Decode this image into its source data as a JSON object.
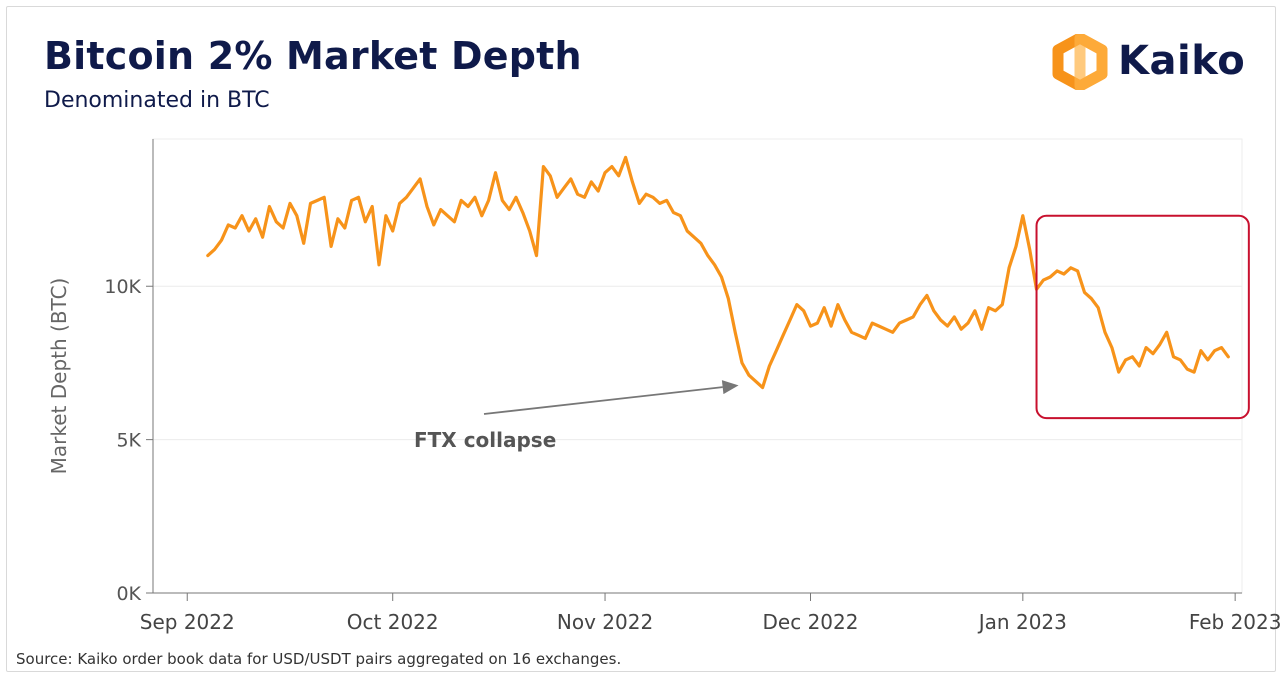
{
  "header": {
    "title": "Bitcoin 2% Market Depth",
    "subtitle": "Denominated in BTC"
  },
  "brand": {
    "name": "Kaiko",
    "logo_icon": "hexagon-logo-icon",
    "logo_color": "#f7931a",
    "text_color": "#0f1a4a"
  },
  "source": "Source: Kaiko order book data for USD/USDT pairs aggregated on 16 exchanges.",
  "chart_data": {
    "type": "line",
    "title": "Bitcoin 2% Market Depth",
    "subtitle": "Denominated in BTC",
    "xlabel": "",
    "ylabel": "Market Depth (BTC)",
    "x_range": [
      "2022-08-27",
      "2023-02-02"
    ],
    "ylim": [
      0,
      14800
    ],
    "y_ticks": [
      {
        "value": 0,
        "label": "0K"
      },
      {
        "value": 5000,
        "label": "5K"
      },
      {
        "value": 10000,
        "label": "10K"
      }
    ],
    "x_ticks": [
      {
        "date": "2022-09-01",
        "label": "Sep 2022"
      },
      {
        "date": "2022-10-01",
        "label": "Oct 2022"
      },
      {
        "date": "2022-11-01",
        "label": "Nov 2022"
      },
      {
        "date": "2022-12-01",
        "label": "Dec 2022"
      },
      {
        "date": "2023-01-01",
        "label": "Jan 2023"
      },
      {
        "date": "2023-02-01",
        "label": "Feb 2023"
      }
    ],
    "grid": true,
    "line_color": "#f7931a",
    "series": [
      {
        "points": [
          [
            "2022-09-04",
            11000
          ],
          [
            "2022-09-05",
            11200
          ],
          [
            "2022-09-06",
            11500
          ],
          [
            "2022-09-07",
            12000
          ],
          [
            "2022-09-08",
            11900
          ],
          [
            "2022-09-09",
            12300
          ],
          [
            "2022-09-10",
            11800
          ],
          [
            "2022-09-11",
            12200
          ],
          [
            "2022-09-12",
            11600
          ],
          [
            "2022-09-13",
            12600
          ],
          [
            "2022-09-14",
            12100
          ],
          [
            "2022-09-15",
            11900
          ],
          [
            "2022-09-16",
            12700
          ],
          [
            "2022-09-17",
            12300
          ],
          [
            "2022-09-18",
            11400
          ],
          [
            "2022-09-19",
            12700
          ],
          [
            "2022-09-20",
            12800
          ],
          [
            "2022-09-21",
            12900
          ],
          [
            "2022-09-22",
            11300
          ],
          [
            "2022-09-23",
            12200
          ],
          [
            "2022-09-24",
            11900
          ],
          [
            "2022-09-25",
            12800
          ],
          [
            "2022-09-26",
            12900
          ],
          [
            "2022-09-27",
            12100
          ],
          [
            "2022-09-28",
            12600
          ],
          [
            "2022-09-29",
            10700
          ],
          [
            "2022-09-30",
            12300
          ],
          [
            "2022-10-01",
            11800
          ],
          [
            "2022-10-02",
            12700
          ],
          [
            "2022-10-03",
            12900
          ],
          [
            "2022-10-04",
            13200
          ],
          [
            "2022-10-05",
            13500
          ],
          [
            "2022-10-06",
            12600
          ],
          [
            "2022-10-07",
            12000
          ],
          [
            "2022-10-08",
            12500
          ],
          [
            "2022-10-09",
            12300
          ],
          [
            "2022-10-10",
            12100
          ],
          [
            "2022-10-11",
            12800
          ],
          [
            "2022-10-12",
            12600
          ],
          [
            "2022-10-13",
            12900
          ],
          [
            "2022-10-14",
            12300
          ],
          [
            "2022-10-15",
            12800
          ],
          [
            "2022-10-16",
            13700
          ],
          [
            "2022-10-17",
            12800
          ],
          [
            "2022-10-18",
            12500
          ],
          [
            "2022-10-19",
            12900
          ],
          [
            "2022-10-20",
            12400
          ],
          [
            "2022-10-21",
            11800
          ],
          [
            "2022-10-22",
            11000
          ],
          [
            "2022-10-23",
            13900
          ],
          [
            "2022-10-24",
            13600
          ],
          [
            "2022-10-25",
            12900
          ],
          [
            "2022-10-26",
            13200
          ],
          [
            "2022-10-27",
            13500
          ],
          [
            "2022-10-28",
            13000
          ],
          [
            "2022-10-29",
            12900
          ],
          [
            "2022-10-30",
            13400
          ],
          [
            "2022-10-31",
            13100
          ],
          [
            "2022-11-01",
            13700
          ],
          [
            "2022-11-02",
            13900
          ],
          [
            "2022-11-03",
            13600
          ],
          [
            "2022-11-04",
            14200
          ],
          [
            "2022-11-05",
            13400
          ],
          [
            "2022-11-06",
            12700
          ],
          [
            "2022-11-07",
            13000
          ],
          [
            "2022-11-08",
            12900
          ],
          [
            "2022-11-09",
            12700
          ],
          [
            "2022-11-10",
            12800
          ],
          [
            "2022-11-11",
            12400
          ],
          [
            "2022-11-12",
            12300
          ],
          [
            "2022-11-13",
            11800
          ],
          [
            "2022-11-14",
            11600
          ],
          [
            "2022-11-15",
            11400
          ],
          [
            "2022-11-16",
            11000
          ],
          [
            "2022-11-17",
            10700
          ],
          [
            "2022-11-18",
            10300
          ],
          [
            "2022-11-19",
            9600
          ],
          [
            "2022-11-20",
            8500
          ],
          [
            "2022-11-21",
            7500
          ],
          [
            "2022-11-22",
            7100
          ],
          [
            "2022-11-23",
            6900
          ],
          [
            "2022-11-24",
            6700
          ],
          [
            "2022-11-25",
            7400
          ],
          [
            "2022-11-26",
            7900
          ],
          [
            "2022-11-27",
            8400
          ],
          [
            "2022-11-28",
            8900
          ],
          [
            "2022-11-29",
            9400
          ],
          [
            "2022-11-30",
            9200
          ],
          [
            "2022-12-01",
            8700
          ],
          [
            "2022-12-02",
            8800
          ],
          [
            "2022-12-03",
            9300
          ],
          [
            "2022-12-04",
            8700
          ],
          [
            "2022-12-05",
            9400
          ],
          [
            "2022-12-06",
            8900
          ],
          [
            "2022-12-07",
            8500
          ],
          [
            "2022-12-08",
            8400
          ],
          [
            "2022-12-09",
            8300
          ],
          [
            "2022-12-10",
            8800
          ],
          [
            "2022-12-11",
            8700
          ],
          [
            "2022-12-12",
            8600
          ],
          [
            "2022-12-13",
            8500
          ],
          [
            "2022-12-14",
            8800
          ],
          [
            "2022-12-15",
            8900
          ],
          [
            "2022-12-16",
            9000
          ],
          [
            "2022-12-17",
            9400
          ],
          [
            "2022-12-18",
            9700
          ],
          [
            "2022-12-19",
            9200
          ],
          [
            "2022-12-20",
            8900
          ],
          [
            "2022-12-21",
            8700
          ],
          [
            "2022-12-22",
            9000
          ],
          [
            "2022-12-23",
            8600
          ],
          [
            "2022-12-24",
            8800
          ],
          [
            "2022-12-25",
            9200
          ],
          [
            "2022-12-26",
            8600
          ],
          [
            "2022-12-27",
            9300
          ],
          [
            "2022-12-28",
            9200
          ],
          [
            "2022-12-29",
            9400
          ],
          [
            "2022-12-30",
            10600
          ],
          [
            "2022-12-31",
            11300
          ],
          [
            "2023-01-01",
            12300
          ],
          [
            "2023-01-02",
            11200
          ],
          [
            "2023-01-03",
            9900
          ],
          [
            "2023-01-04",
            10200
          ],
          [
            "2023-01-05",
            10300
          ],
          [
            "2023-01-06",
            10500
          ],
          [
            "2023-01-07",
            10400
          ],
          [
            "2023-01-08",
            10600
          ],
          [
            "2023-01-09",
            10500
          ],
          [
            "2023-01-10",
            9800
          ],
          [
            "2023-01-11",
            9600
          ],
          [
            "2023-01-12",
            9300
          ],
          [
            "2023-01-13",
            8500
          ],
          [
            "2023-01-14",
            8000
          ],
          [
            "2023-01-15",
            7200
          ],
          [
            "2023-01-16",
            7600
          ],
          [
            "2023-01-17",
            7700
          ],
          [
            "2023-01-18",
            7400
          ],
          [
            "2023-01-19",
            8000
          ],
          [
            "2023-01-20",
            7800
          ],
          [
            "2023-01-21",
            8100
          ],
          [
            "2023-01-22",
            8500
          ],
          [
            "2023-01-23",
            7700
          ],
          [
            "2023-01-24",
            7600
          ],
          [
            "2023-01-25",
            7300
          ],
          [
            "2023-01-26",
            7200
          ],
          [
            "2023-01-27",
            7900
          ],
          [
            "2023-01-28",
            7600
          ],
          [
            "2023-01-29",
            7900
          ],
          [
            "2023-01-30",
            8000
          ],
          [
            "2023-01-31",
            7700
          ]
        ]
      }
    ],
    "annotations": [
      {
        "text": "FTX collapse",
        "arrow_to_date": "2022-11-24",
        "arrow_to_value": 6900
      }
    ],
    "highlight_box": {
      "x_range": [
        "2023-01-03",
        "2023-02-03"
      ],
      "y_range": [
        5700,
        12300
      ],
      "color": "#c8102e"
    }
  }
}
